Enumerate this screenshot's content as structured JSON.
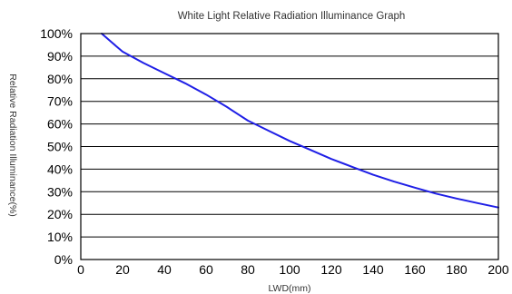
{
  "chart_data": {
    "type": "line",
    "title": "White Light Relative Radiation Illuminance Graph",
    "xlabel": "LWD(mm)",
    "ylabel": "Relative Radiation Illuminance(%)",
    "xlim": [
      0,
      200
    ],
    "ylim": [
      0,
      100
    ],
    "xticks": [
      0,
      20,
      40,
      60,
      80,
      100,
      120,
      140,
      160,
      180,
      200
    ],
    "xtick_labels": [
      "0",
      "20",
      "40",
      "60",
      "80",
      "100",
      "120",
      "140",
      "160",
      "180",
      "200"
    ],
    "yticks": [
      0,
      10,
      20,
      30,
      40,
      50,
      60,
      70,
      80,
      90,
      100
    ],
    "ytick_labels": [
      "0%",
      "10%",
      "20%",
      "30%",
      "40%",
      "50%",
      "60%",
      "70%",
      "80%",
      "90%",
      "100%"
    ],
    "grid": "horizontal",
    "series": [
      {
        "color": "#1f1fe6",
        "x": [
          10,
          15,
          20,
          30,
          40,
          50,
          60,
          70,
          80,
          90,
          100,
          110,
          120,
          130,
          140,
          150,
          160,
          170,
          180,
          190,
          200
        ],
        "y": [
          100,
          96,
          92,
          87,
          82.5,
          78,
          73,
          67.5,
          61.5,
          57,
          52.5,
          48.5,
          44.5,
          41,
          37.5,
          34.5,
          31.8,
          29.2,
          27,
          25,
          23
        ]
      }
    ]
  }
}
